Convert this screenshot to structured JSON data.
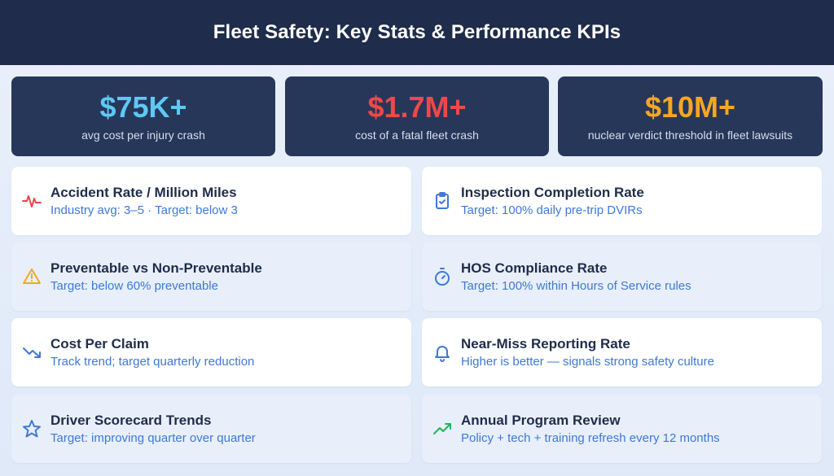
{
  "header": {
    "title": "Fleet Safety: Key Stats & Performance KPIs"
  },
  "stats": [
    {
      "value": "$75K+",
      "label": "avg cost per injury crash",
      "color": "#5ec8f5"
    },
    {
      "value": "$1.7M+",
      "label": "cost of a fatal fleet crash",
      "color": "#f04848"
    },
    {
      "value": "$10M+",
      "label": "nuclear verdict threshold in fleet lawsuits",
      "color": "#f5a623"
    }
  ],
  "kpis": [
    {
      "title": "Accident Rate / Million Miles",
      "subtitle": "Industry avg: 3–5 · Target: below 3",
      "icon": "heartbeat-icon",
      "icon_color": "#e5484d"
    },
    {
      "title": "Inspection Completion Rate",
      "subtitle": "Target: 100% daily pre-trip DVIRs",
      "icon": "clipboard-check-icon",
      "icon_color": "#3f78d6"
    },
    {
      "title": "Preventable vs Non-Preventable",
      "subtitle": "Target: below 60% preventable",
      "icon": "warning-icon",
      "icon_color": "#f5a623"
    },
    {
      "title": "HOS Compliance Rate",
      "subtitle": "Target: 100% within Hours of Service rules",
      "icon": "stopwatch-icon",
      "icon_color": "#3f78d6"
    },
    {
      "title": "Cost Per Claim",
      "subtitle": "Track trend; target quarterly reduction",
      "icon": "trending-down-icon",
      "icon_color": "#3f78d6"
    },
    {
      "title": "Near-Miss Reporting Rate",
      "subtitle": "Higher is better — signals strong safety culture",
      "icon": "bell-icon",
      "icon_color": "#3f78d6"
    },
    {
      "title": "Driver Scorecard Trends",
      "subtitle": "Target: improving quarter over quarter",
      "icon": "star-icon",
      "icon_color": "#3f78d6"
    },
    {
      "title": "Annual Program Review",
      "subtitle": "Policy + tech + training refresh every 12 months",
      "icon": "trending-up-icon",
      "icon_color": "#22b35a"
    }
  ]
}
